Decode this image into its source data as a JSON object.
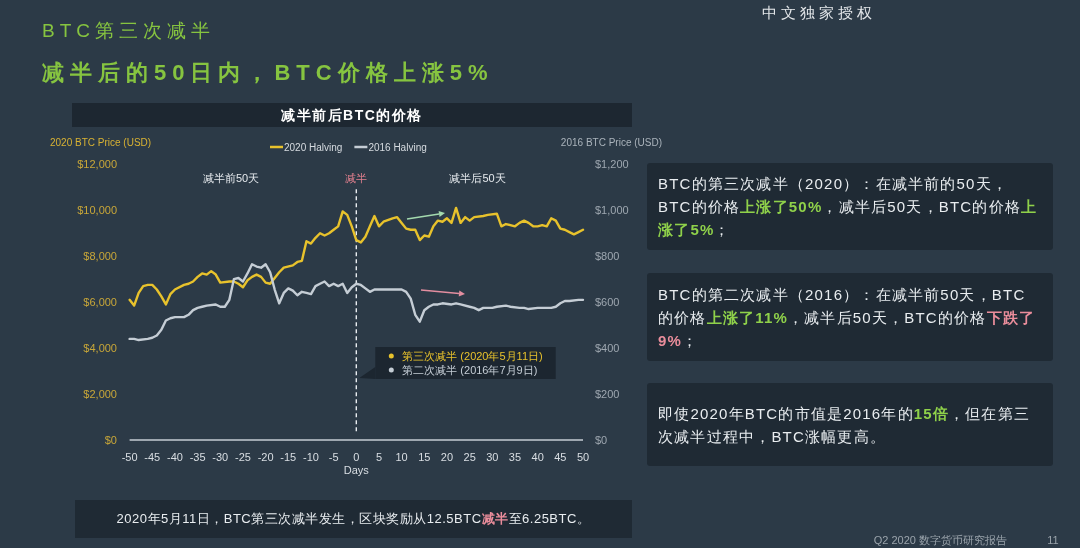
{
  "chart_data": {
    "type": "line",
    "title": "减半前后BTC的价格",
    "xlabel": "Days",
    "ylabel": "2020 BTC Price (USD)",
    "y2label": "2016 BTC Price (USD)",
    "legend": "top",
    "xlim": [
      -50,
      50
    ],
    "xticks": [
      -50,
      -45,
      -40,
      -35,
      -30,
      -25,
      -20,
      -15,
      -10,
      -5,
      0,
      5,
      10,
      15,
      20,
      25,
      30,
      35,
      40,
      45,
      50
    ],
    "ylim": [
      0,
      12000
    ],
    "yticks": [
      {
        "value": 0,
        "label": "$0"
      },
      {
        "value": 2000,
        "label": "$2,000"
      },
      {
        "value": 4000,
        "label": "$4,000"
      },
      {
        "value": 6000,
        "label": "$6,000"
      },
      {
        "value": 8000,
        "label": "$8,000"
      },
      {
        "value": 10000,
        "label": "$10,000"
      },
      {
        "value": 12000,
        "label": "$12,000"
      }
    ],
    "y2lim": [
      0,
      1200
    ],
    "y2ticks": [
      {
        "value": 0,
        "label": "$0"
      },
      {
        "value": 200,
        "label": "$200"
      },
      {
        "value": 400,
        "label": "$400"
      },
      {
        "value": 600,
        "label": "$600"
      },
      {
        "value": 800,
        "label": "$800"
      },
      {
        "value": 1000,
        "label": "$1,000"
      },
      {
        "value": 1200,
        "label": "$1,200"
      }
    ],
    "series": [
      {
        "name": "2020 Halving",
        "color": "#e8c22c",
        "x": [
          -50,
          -49,
          -48,
          -47,
          -46,
          -45,
          -44,
          -43,
          -42,
          -41,
          -40,
          -38,
          -37,
          -36,
          -35,
          -34,
          -33,
          -32,
          -31,
          -30,
          -28,
          -27,
          -26,
          -25,
          -24,
          -23,
          -22,
          -21,
          -20,
          -19,
          -18,
          -17,
          -16,
          -14,
          -13,
          -12,
          -11,
          -10,
          -9,
          -8,
          -7,
          -6,
          -5,
          -4,
          -3,
          -2,
          -1,
          0,
          1,
          2,
          3,
          4,
          5,
          6,
          8,
          9,
          10,
          11,
          12,
          13,
          14,
          15,
          16,
          17,
          18,
          19,
          20,
          21,
          22,
          23,
          24,
          25,
          26,
          28,
          29,
          31,
          32,
          33,
          35,
          36,
          37,
          38,
          39,
          40,
          41,
          42,
          43,
          44,
          45,
          46,
          47,
          48,
          49,
          50
        ],
        "values": [
          6100,
          5850,
          6400,
          6700,
          6750,
          6750,
          6550,
          6250,
          5900,
          6350,
          6550,
          6750,
          6800,
          6900,
          7100,
          7250,
          7200,
          7350,
          7200,
          6850,
          6900,
          6900,
          6800,
          6650,
          6950,
          7100,
          7200,
          7100,
          6850,
          6800,
          7050,
          7300,
          7500,
          7600,
          7750,
          7800,
          8650,
          8550,
          8800,
          9000,
          8900,
          9000,
          9150,
          9300,
          9950,
          9800,
          9300,
          8700,
          8600,
          8850,
          9300,
          9750,
          9300,
          9500,
          9650,
          9700,
          9450,
          9200,
          9150,
          9150,
          8700,
          8900,
          8850,
          9300,
          9550,
          9500,
          9650,
          9450,
          10100,
          9450,
          9700,
          9550,
          9700,
          9750,
          9800,
          9850,
          9300,
          9400,
          9300,
          9450,
          9550,
          9450,
          9300,
          9300,
          9350,
          9300,
          9650,
          9550,
          9200,
          9150,
          9050,
          8950,
          9050,
          9150
        ]
      },
      {
        "name": "2016 Halving",
        "color": "#c5cdd5",
        "axis": "y2",
        "x": [
          -50,
          -49,
          -48,
          -46,
          -45,
          -44,
          -43,
          -42,
          -41,
          -40,
          -38,
          -37,
          -36,
          -35,
          -34,
          -33,
          -31,
          -30,
          -29,
          -28,
          -27,
          -26,
          -25,
          -24,
          -23,
          -22,
          -21,
          -20,
          -19,
          -18,
          -17,
          -16,
          -15,
          -14,
          -13,
          -12,
          -11,
          -10,
          -9,
          -8,
          -7,
          -6,
          -5,
          -4,
          -3,
          -2,
          -1,
          0,
          1,
          2,
          3,
          4,
          6,
          8,
          10,
          11,
          12,
          13,
          14,
          15,
          16,
          17,
          18,
          19,
          21,
          22,
          23,
          25,
          26,
          27,
          28,
          30,
          31,
          33,
          34,
          36,
          37,
          38,
          40,
          42,
          43,
          44,
          45,
          46,
          47,
          49,
          50
        ],
        "values": [
          440,
          440,
          435,
          440,
          445,
          455,
          480,
          520,
          530,
          535,
          535,
          545,
          565,
          575,
          580,
          585,
          590,
          580,
          580,
          610,
          700,
          705,
          690,
          725,
          765,
          755,
          750,
          765,
          730,
          655,
          595,
          640,
          660,
          650,
          630,
          645,
          640,
          635,
          670,
          680,
          690,
          670,
          680,
          670,
          680,
          640,
          665,
          680,
          675,
          660,
          645,
          655,
          655,
          655,
          655,
          645,
          615,
          545,
          515,
          565,
          580,
          590,
          590,
          595,
          590,
          595,
          590,
          580,
          575,
          565,
          575,
          575,
          580,
          585,
          580,
          575,
          575,
          570,
          575,
          575,
          575,
          580,
          595,
          605,
          605,
          610,
          610
        ]
      }
    ],
    "ref_lines": [
      {
        "axis": "x",
        "value": 0,
        "label": "减半",
        "color": "#e8ecf0",
        "line_style": "dashed"
      }
    ],
    "annotations": [
      "BTC第三次减半",
      "减半后的50日内，BTC价格上涨5%",
      "中文独家授权",
      "减半前50天",
      "减半后50天",
      "第三次减半 (2020年5月11日)",
      "第二次减半 (2016年7月9日)",
      "BTC的第三次减半（2020）：在减半前的50天，BTC的价格**上涨了50%**，减半后50天，BTC的价格**上涨了5%**；",
      "BTC的第二次减半（2016）：在减半前50天，BTC的价格**上涨了11%**，减半后50天，BTC的价格**下跌了9%**；",
      "即使2020年BTC的市值是2016年的**15倍**，但在第三次减半过程中，BTC涨幅更高。",
      "2020年5月11日，BTC第三次减半发生，区块奖励从12.5BTC**减半**至6.25BTC。",
      "Q2 2020 数字货币研究报告",
      "11"
    ]
  }
}
